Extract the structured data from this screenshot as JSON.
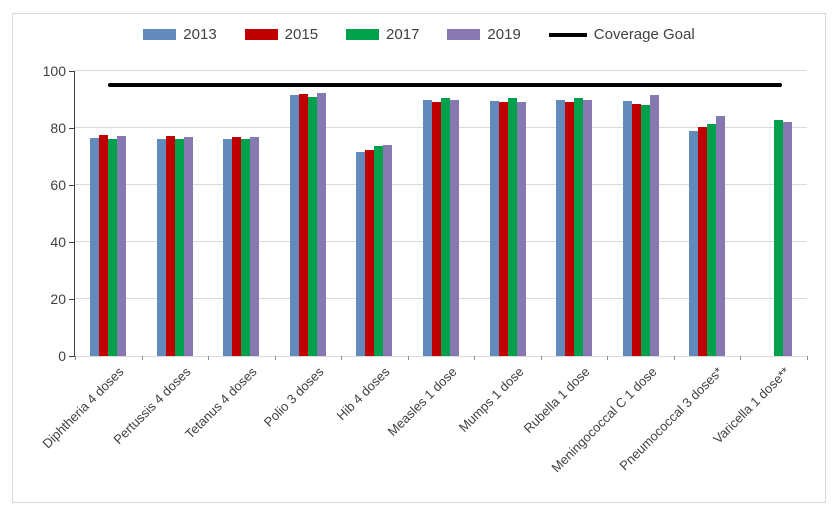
{
  "chart_data": {
    "type": "bar",
    "title": "",
    "xlabel": "",
    "ylabel": "",
    "ylim": [
      0,
      100
    ],
    "yticks": [
      0,
      20,
      40,
      60,
      80,
      100
    ],
    "grid": true,
    "legend_position": "top",
    "categories": [
      "Diphtheria 4 doses",
      "Pertussis 4 doses",
      "Tetanus 4 doses",
      "Polio 3 doses",
      "Hib 4 doses",
      "Measles 1 dose",
      "Mumps 1 dose",
      "Rubella 1 dose",
      "Meningococcal C 1 dose",
      "Pneumococcal 3 doses*",
      "Varicella 1 dose**"
    ],
    "series": [
      {
        "name": "2013",
        "color": "#628BBC",
        "values": [
          76.6,
          76.3,
          76.1,
          91.5,
          71.6,
          89.9,
          89.4,
          90.0,
          89.5,
          79.0,
          null
        ]
      },
      {
        "name": "2015",
        "color": "#C00000",
        "values": [
          77.4,
          77.3,
          77.0,
          92.0,
          72.3,
          89.3,
          89.0,
          89.3,
          88.4,
          80.3,
          null
        ]
      },
      {
        "name": "2017",
        "color": "#00A14D",
        "values": [
          76.2,
          76.0,
          76.0,
          91.0,
          73.6,
          90.6,
          90.4,
          90.7,
          88.1,
          81.4,
          82.8
        ]
      },
      {
        "name": "2019",
        "color": "#8878B1",
        "values": [
          77.2,
          77.0,
          77.0,
          92.3,
          74.2,
          90.0,
          89.3,
          89.9,
          91.6,
          84.3,
          82.0
        ]
      }
    ],
    "goal_line": {
      "label": "Coverage Goal",
      "value": 95,
      "color": "#000000"
    }
  }
}
